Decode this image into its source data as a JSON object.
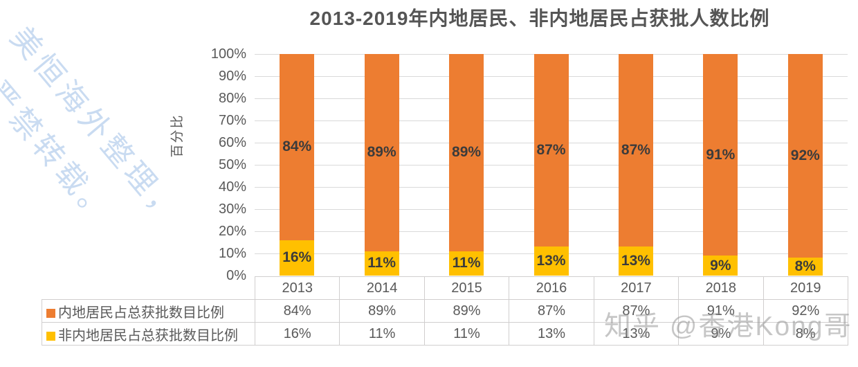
{
  "page": {
    "watermark_diagonal_line1": "美恒海外整理，",
    "watermark_diagonal_line2": "严禁转载。",
    "watermark_credit": "知乎 @香港Kong哥"
  },
  "colors": {
    "mainland_series": "#ED7D31",
    "non_mainland_series": "#FFC000",
    "gridline": "#D9D9D9",
    "table_border": "#D0CECE",
    "axis_text": "#595959",
    "data_label_text": "#3B3B3B",
    "watermark_blue": "#C4D8F0",
    "watermark_gray": "#8F8F8F"
  },
  "chart_data": {
    "type": "bar",
    "stacked": true,
    "title": "2013-2019年内地居民、非内地居民占获批人数比例",
    "xlabel": "",
    "ylabel": "百分比",
    "categories": [
      "2013",
      "2014",
      "2015",
      "2016",
      "2017",
      "2018",
      "2019"
    ],
    "series": [
      {
        "name": "内地居民占总获批数目比例",
        "color": "#ED7D31",
        "values": [
          84,
          89,
          89,
          87,
          87,
          91,
          92
        ]
      },
      {
        "name": "非内地居民占总获批数目比例",
        "color": "#FFC000",
        "values": [
          16,
          11,
          11,
          13,
          13,
          9,
          8
        ]
      }
    ],
    "value_suffix": "%",
    "ylim": [
      0,
      100
    ],
    "ytick_step": 10,
    "yticks": [
      "0%",
      "10%",
      "20%",
      "30%",
      "40%",
      "50%",
      "60%",
      "70%",
      "80%",
      "90%",
      "100%"
    ],
    "grid": true,
    "legend_position": "data-table-left",
    "data_table": true
  }
}
